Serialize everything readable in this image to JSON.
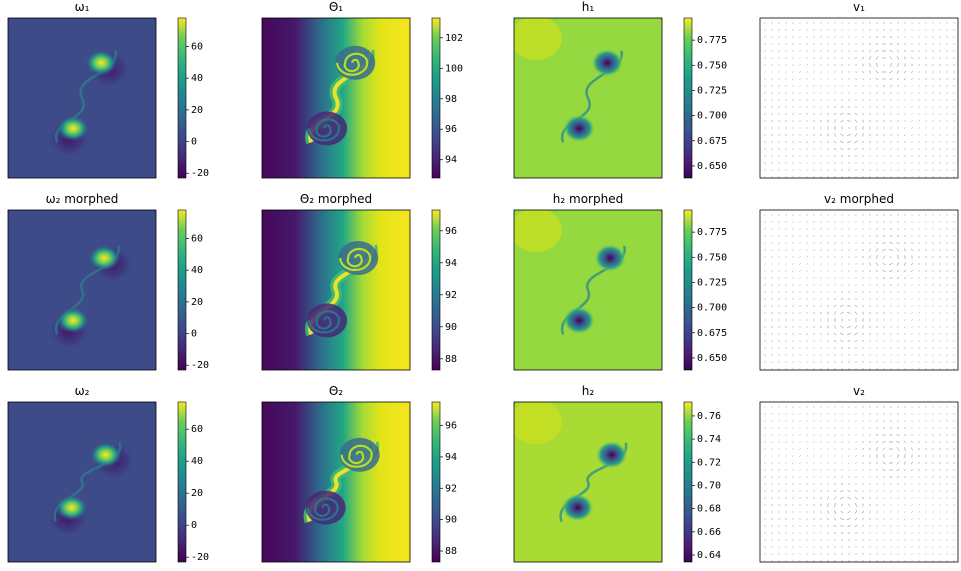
{
  "panels": [
    {
      "title": "ω₁",
      "colorbar": {
        "lim": [
          -23,
          78
        ],
        "ticks": [
          -20,
          0,
          20,
          40,
          60
        ]
      }
    },
    {
      "title": "Θ₁",
      "colorbar": {
        "lim": [
          92.8,
          103.3
        ],
        "ticks": [
          94,
          96,
          98,
          100,
          102
        ]
      }
    },
    {
      "title": "h₁",
      "colorbar": {
        "lim": [
          0.638,
          0.797
        ],
        "ticks": [
          {
            "value": 0.65,
            "label": "0.650"
          },
          0.675,
          {
            "value": 0.7,
            "label": "0.700"
          },
          0.725,
          {
            "value": 0.75,
            "label": "0.750"
          },
          0.775
        ]
      }
    },
    {
      "title": "v₁"
    },
    {
      "title": "ω₂ morphed",
      "colorbar": {
        "lim": [
          -23,
          78
        ],
        "ticks": [
          -20,
          0,
          20,
          40,
          60
        ]
      }
    },
    {
      "title": "Θ₂ morphed",
      "colorbar": {
        "lim": [
          87.3,
          97.3
        ],
        "ticks": [
          88,
          90,
          92,
          94,
          96
        ]
      }
    },
    {
      "title": "h₂ morphed",
      "colorbar": {
        "lim": [
          0.638,
          0.797
        ],
        "ticks": [
          {
            "value": 0.65,
            "label": "0.650"
          },
          0.675,
          {
            "value": 0.7,
            "label": "0.700"
          },
          0.725,
          {
            "value": 0.75,
            "label": "0.750"
          },
          0.775
        ]
      }
    },
    {
      "title": "v₂ morphed"
    },
    {
      "title": "ω₂",
      "colorbar": {
        "lim": [
          -23,
          77
        ],
        "ticks": [
          -20,
          0,
          20,
          40,
          60
        ]
      }
    },
    {
      "title": "Θ₂",
      "colorbar": {
        "lim": [
          87.3,
          97.5
        ],
        "ticks": [
          88,
          90,
          92,
          94,
          96
        ]
      }
    },
    {
      "title": "h₂",
      "colorbar": {
        "lim": [
          0.634,
          0.772
        ],
        "ticks": [
          {
            "value": 0.64,
            "label": "0.64"
          },
          0.66,
          0.68,
          {
            "value": 0.7,
            "label": "0.70"
          },
          0.72,
          0.74,
          0.76
        ]
      }
    },
    {
      "title": "v₂"
    }
  ]
}
